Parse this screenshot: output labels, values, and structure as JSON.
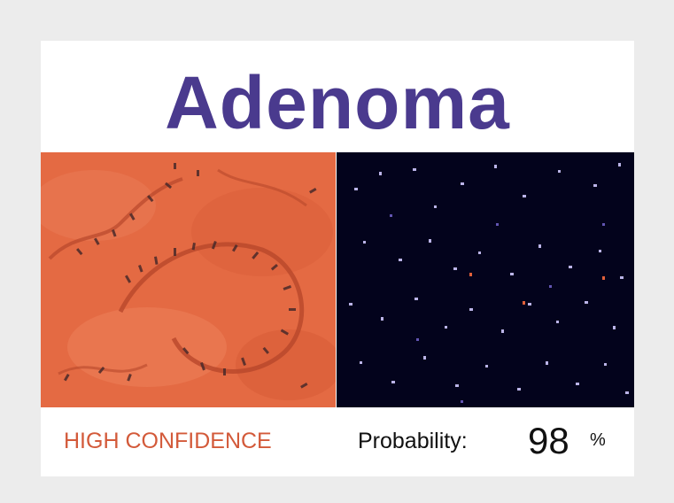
{
  "title": "Adenoma",
  "confidence_label": "HIGH CONFIDENCE",
  "probability": {
    "label": "Probability:",
    "value": "98",
    "unit": "%"
  },
  "colors": {
    "title": "#4a3a8e",
    "confidence": "#d35a3a",
    "tissue": "#e46a43",
    "fluorescence_bg": "#03031c"
  },
  "images": {
    "left": "histology-tissue-image",
    "right": "fluorescence-nuclei-image"
  }
}
